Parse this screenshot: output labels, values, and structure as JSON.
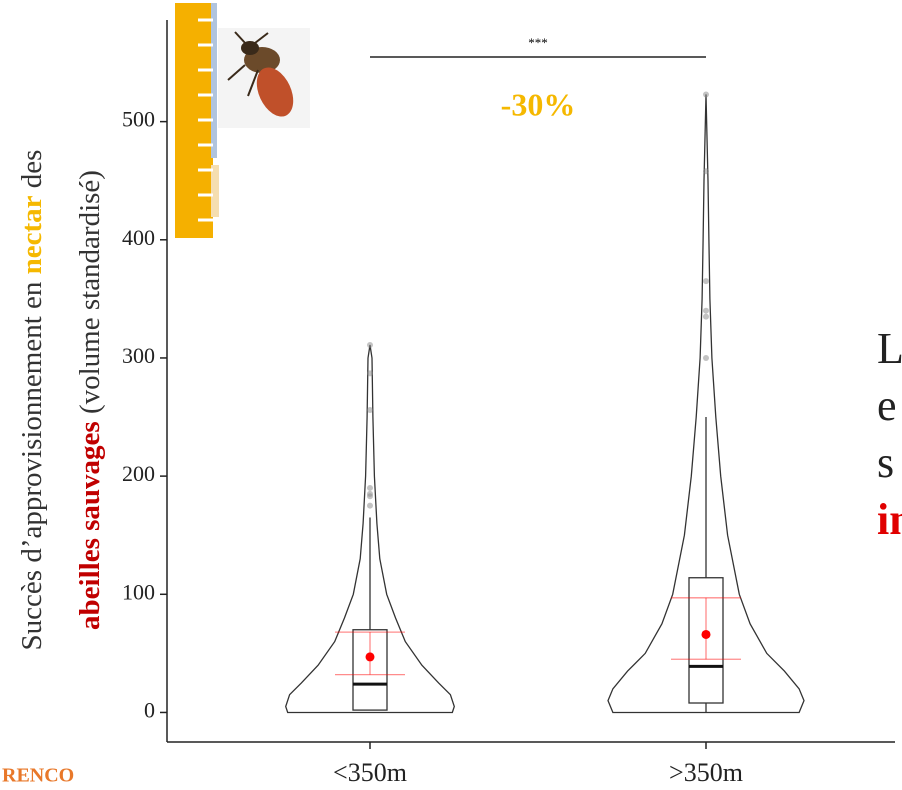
{
  "chart_data": {
    "type": "violin",
    "y_label": [
      [
        {
          "text": "Succès d’approvisionnement en "
        },
        {
          "text": "nectar",
          "color": "#f5b800",
          "bold": true
        },
        {
          "text": " des"
        }
      ],
      [
        {
          "text": "abeilles sauvages",
          "color": "#c00000",
          "bold": true
        },
        {
          "text": " (volume standardisé)"
        }
      ]
    ],
    "categories": [
      "<350m",
      ">350m"
    ],
    "ylim": [
      -25,
      586
    ],
    "yticks": [
      0,
      100,
      200,
      300,
      400,
      500
    ],
    "significance": {
      "label": "***",
      "effect": "-30%",
      "effect_color": "#f5b800"
    },
    "mean_color": "#ff0000",
    "series": [
      {
        "whisker_low": 2,
        "q1": 2,
        "median": 24,
        "q3": 70,
        "whisker_high": 165,
        "mean": 47,
        "ci_low": 32,
        "ci_high": 68,
        "outliers": [
          175,
          183,
          185,
          190,
          256,
          287,
          311
        ],
        "violin": {
          "y": [
            0,
            5,
            15,
            25,
            40,
            60,
            80,
            100,
            130,
            160,
            200,
            250,
            300,
            311
          ],
          "density": [
            0.84,
            0.86,
            0.82,
            0.7,
            0.53,
            0.36,
            0.26,
            0.17,
            0.1,
            0.07,
            0.045,
            0.03,
            0.02,
            0
          ]
        }
      },
      {
        "whisker_low": 0,
        "q1": 8,
        "median": 39,
        "q3": 114,
        "whisker_high": 250,
        "mean": 66,
        "ci_low": 45,
        "ci_high": 97,
        "outliers": [
          300,
          335,
          340,
          365,
          458,
          523
        ],
        "violin": {
          "y": [
            0,
            10,
            20,
            35,
            50,
            75,
            100,
            150,
            200,
            250,
            300,
            350,
            400,
            450,
            523
          ],
          "density": [
            0.95,
            1,
            0.95,
            0.8,
            0.62,
            0.45,
            0.34,
            0.22,
            0.15,
            0.1,
            0.06,
            0.04,
            0.03,
            0.02,
            0
          ]
        }
      }
    ]
  },
  "side_text": [
    {
      "text": "L"
    },
    {
      "text": "e"
    },
    {
      "text": "s"
    },
    {
      "text": "in",
      "color": "#e00000",
      "bold": true
    }
  ],
  "footer": "RENCO"
}
